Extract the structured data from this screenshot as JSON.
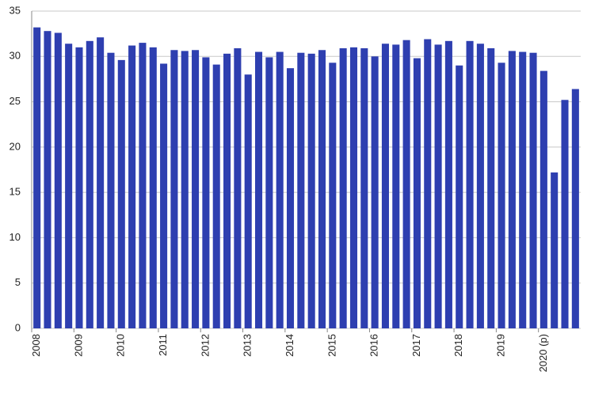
{
  "chart_data": {
    "type": "bar",
    "categories": [
      "2008",
      null,
      null,
      null,
      "2009",
      null,
      null,
      null,
      "2010",
      null,
      null,
      null,
      "2011",
      null,
      null,
      null,
      "2012",
      null,
      null,
      null,
      "2013",
      null,
      null,
      null,
      "2014",
      null,
      null,
      null,
      "2015",
      null,
      null,
      null,
      "2016",
      null,
      null,
      null,
      "2017",
      null,
      null,
      null,
      "2018",
      null,
      null,
      null,
      "2019",
      null,
      null,
      null,
      "2020 (p)",
      null,
      null,
      null
    ],
    "values": [
      33.2,
      32.8,
      32.6,
      31.4,
      31.0,
      31.7,
      32.1,
      30.4,
      29.6,
      31.2,
      31.5,
      31.0,
      29.2,
      30.7,
      30.6,
      30.7,
      29.9,
      29.1,
      30.3,
      30.9,
      28.0,
      30.5,
      29.9,
      30.5,
      28.7,
      30.4,
      30.3,
      30.7,
      29.3,
      30.9,
      31.0,
      30.9,
      30.0,
      31.4,
      31.3,
      31.8,
      29.8,
      31.9,
      31.3,
      31.7,
      29.0,
      31.7,
      31.4,
      30.9,
      29.3,
      30.6,
      30.5,
      30.4,
      28.4,
      17.2,
      25.2,
      26.4
    ],
    "color": "#2e3fb0",
    "ylim": [
      0,
      35
    ],
    "yticks": [
      0,
      5,
      10,
      15,
      20,
      25,
      30,
      35
    ],
    "grid": true
  }
}
